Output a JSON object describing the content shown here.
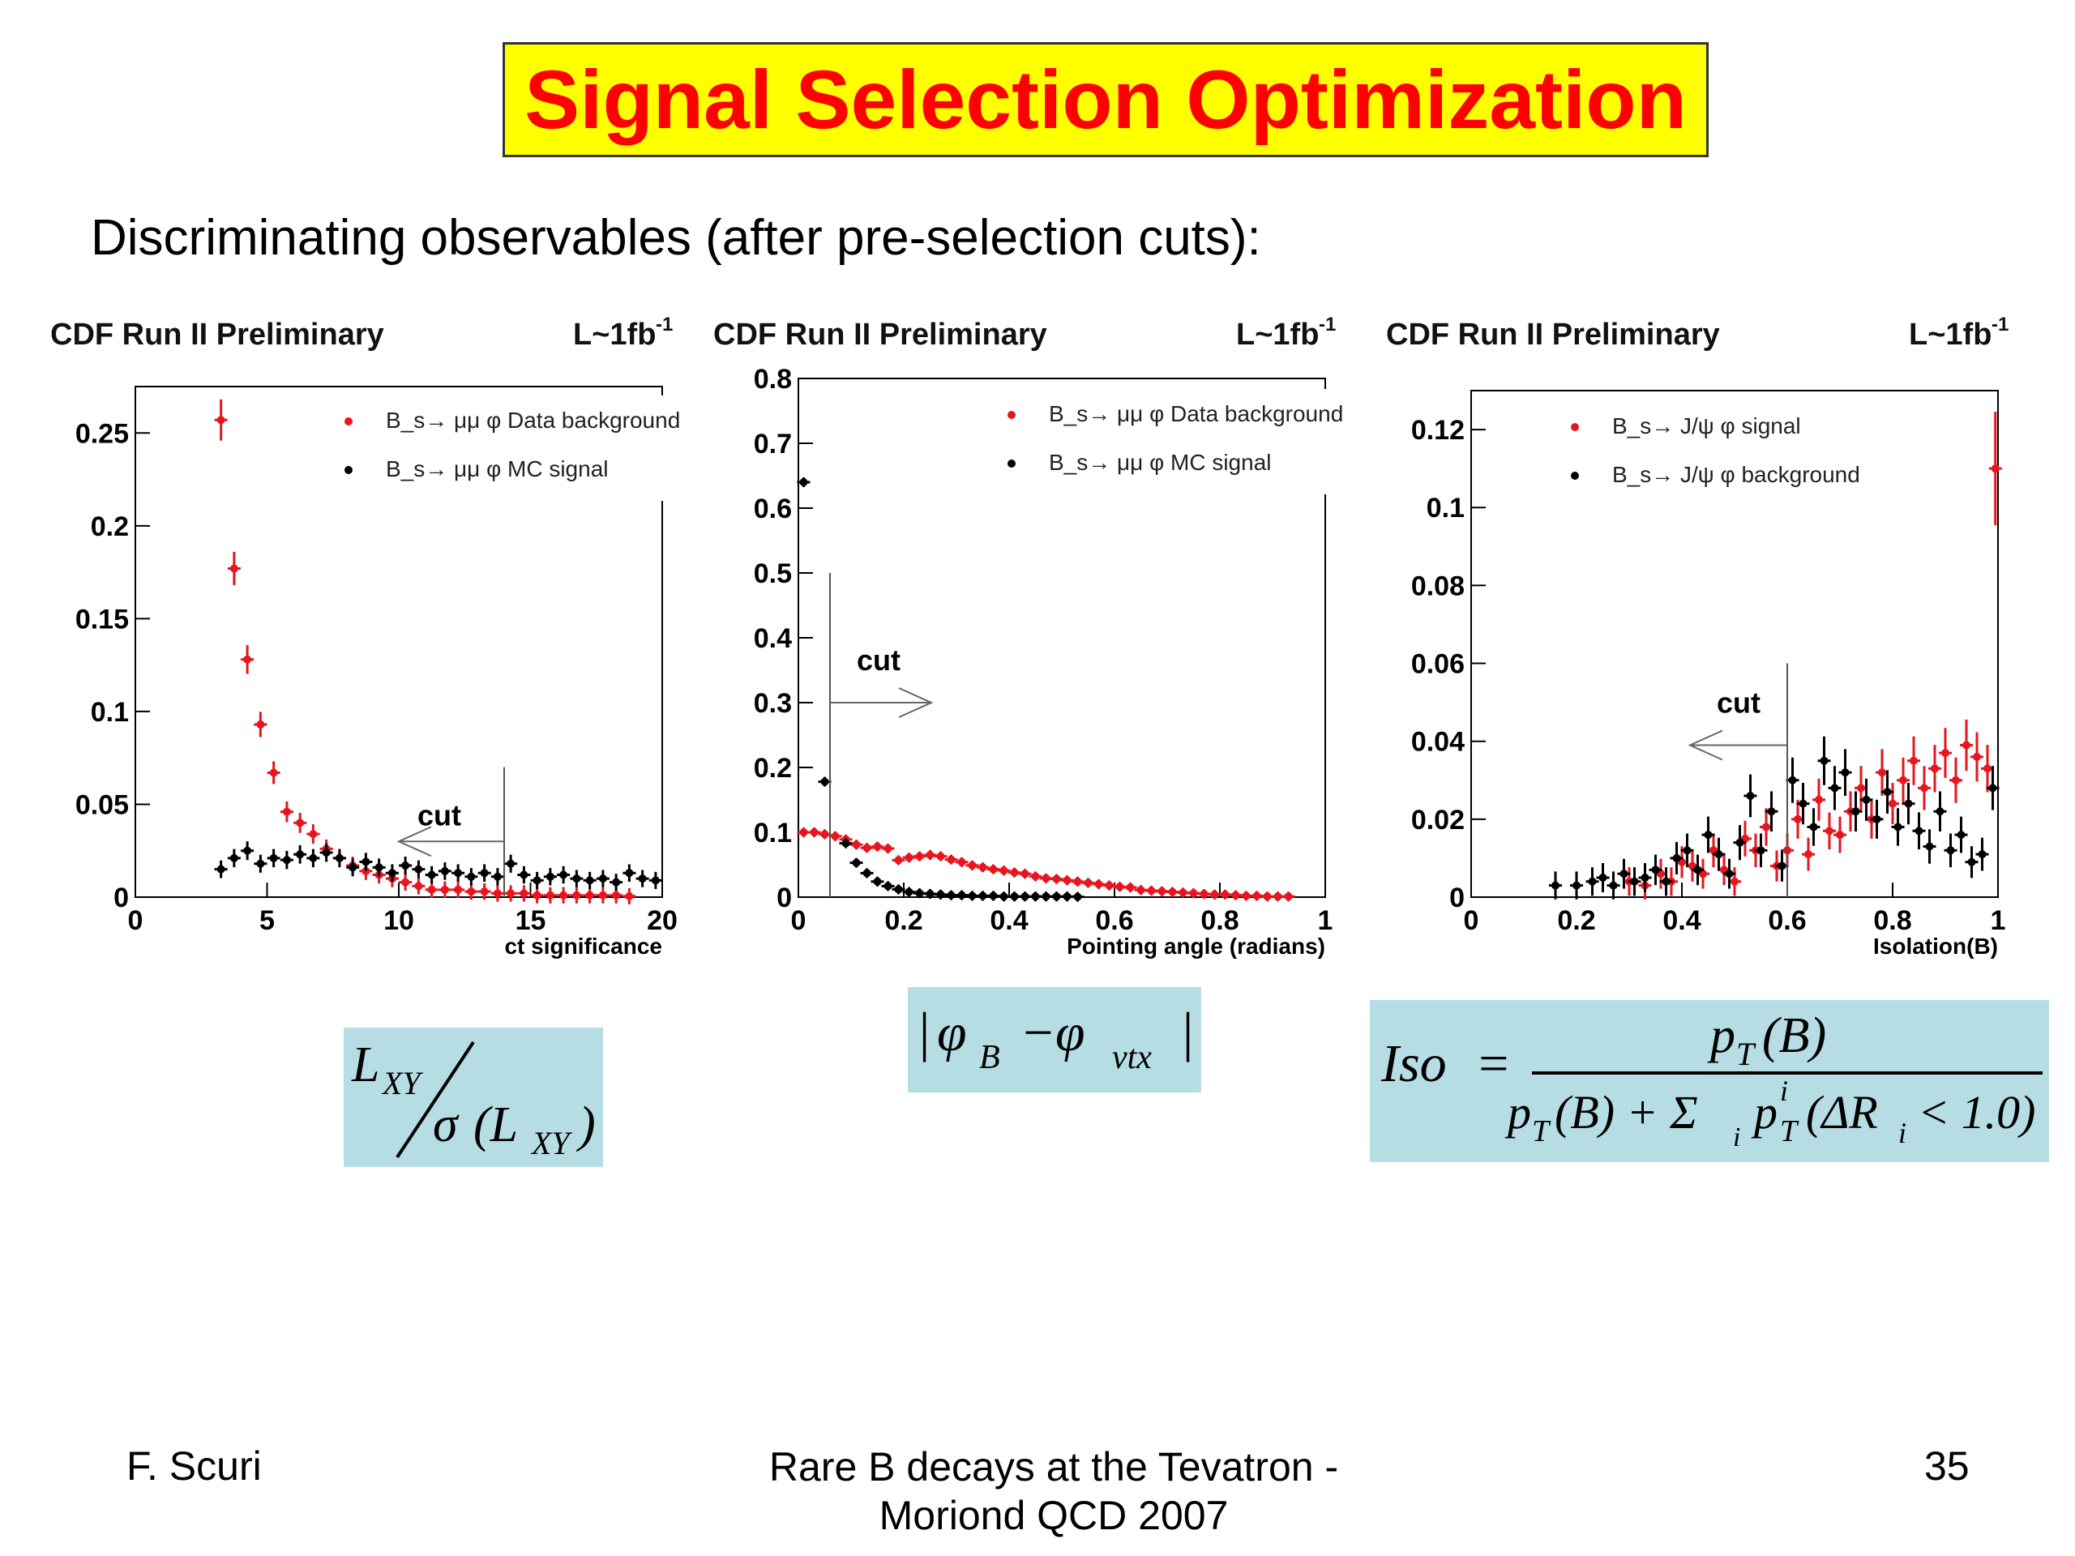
{
  "slide": {
    "title": "Signal Selection Optimization",
    "subtitle": "Discriminating observables (after pre-selection cuts):",
    "footer_left": "F. Scuri",
    "footer_center_line1": "Rare B decays at the Tevatron -",
    "footer_center_line2": "Moriond QCD 2007",
    "footer_right": "35",
    "colors": {
      "title_text": "#ff0000",
      "title_box": "#ffff00",
      "formula_box": "#b6dde3"
    }
  },
  "formulas": {
    "lxy_num": "L",
    "lxy_num_sub": "XY",
    "lxy_den_sym": "σ",
    "lxy_den_arg": "(L",
    "lxy_den_sub": "XY",
    "lxy_den_close": ")",
    "angle_open": "|",
    "angle_phi": "φ",
    "angle_sub_b": "B",
    "angle_minus": "−",
    "angle_phi2": "φ",
    "angle_sub_vtx": "vtx",
    "angle_close": "|",
    "iso_label": "Iso",
    "iso_eq": "=",
    "iso_num": "p",
    "iso_num_sub": "T",
    "iso_num_arg": "(B)",
    "iso_den": "p",
    "iso_den_sub": "T",
    "iso_den_arg": "(B) + Σ",
    "iso_den_i": "i",
    "iso_den_pt": "p",
    "iso_den_pt_sup": "i",
    "iso_den_pt_sub": "T",
    "iso_den_cond": "(ΔR",
    "iso_den_cond_sub": "i",
    "iso_den_cond_end": "< 1.0)"
  },
  "chart_data": [
    {
      "type": "scatter",
      "header_left": "CDF Run II Preliminary",
      "header_right": "L~1fb",
      "header_right_sup": "-1",
      "xlabel": "ct significance",
      "ylabel": "",
      "xlim": [
        0,
        20
      ],
      "ylim": [
        0,
        0.275
      ],
      "xticks": [
        "0",
        "5",
        "10",
        "15",
        "20"
      ],
      "yticks": [
        "0",
        "0.05",
        "0.1",
        "0.15",
        "0.2",
        "0.25"
      ],
      "legend": [
        "B_s→ μμ φ Data background",
        "B_s→ μμ φ MC signal"
      ],
      "annotation": "cut",
      "cut_x": 14,
      "cut_direction": "left",
      "series": [
        {
          "name": "B_s→ μμ φ Data background",
          "color": "#e8141e",
          "x": [
            3.25,
            3.75,
            4.25,
            4.75,
            5.25,
            5.75,
            6.25,
            6.75,
            7.25,
            7.75,
            8.25,
            8.75,
            9.25,
            9.75,
            10.25,
            10.75,
            11.25,
            11.75,
            12.25,
            12.75,
            13.25,
            13.75,
            14.25,
            14.75,
            15.25,
            15.75,
            16.25,
            16.75,
            17.25,
            17.75,
            18.25,
            18.75
          ],
          "y": [
            0.257,
            0.177,
            0.128,
            0.093,
            0.067,
            0.046,
            0.04,
            0.034,
            0.026,
            0.021,
            0.017,
            0.014,
            0.012,
            0.01,
            0.008,
            0.006,
            0.004,
            0.004,
            0.004,
            0.003,
            0.003,
            0.002,
            0.002,
            0.002,
            0.001,
            0.001,
            0.001,
            0.001,
            0.001,
            0.001,
            0.001,
            0.0005
          ]
        },
        {
          "name": "B_s→ μμ φ MC signal",
          "color": "#000000",
          "x": [
            3.25,
            3.75,
            4.25,
            4.75,
            5.25,
            5.75,
            6.25,
            6.75,
            7.25,
            7.75,
            8.25,
            8.75,
            9.25,
            9.75,
            10.25,
            10.75,
            11.25,
            11.75,
            12.25,
            12.75,
            13.25,
            13.75,
            14.25,
            14.75,
            15.25,
            15.75,
            16.25,
            16.75,
            17.25,
            17.75,
            18.25,
            18.75,
            19.25,
            19.75
          ],
          "y": [
            0.015,
            0.021,
            0.025,
            0.018,
            0.021,
            0.02,
            0.023,
            0.021,
            0.024,
            0.021,
            0.016,
            0.019,
            0.016,
            0.013,
            0.017,
            0.015,
            0.012,
            0.014,
            0.013,
            0.011,
            0.013,
            0.011,
            0.018,
            0.012,
            0.009,
            0.011,
            0.012,
            0.01,
            0.009,
            0.01,
            0.008,
            0.013,
            0.01,
            0.009
          ]
        }
      ]
    },
    {
      "type": "scatter",
      "header_left": "CDF Run II Preliminary",
      "header_right": "L~1fb",
      "header_right_sup": "-1",
      "xlabel": "Pointing angle (radians)",
      "ylabel": "",
      "xlim": [
        0,
        1
      ],
      "ylim": [
        0,
        0.8
      ],
      "xticks": [
        "0",
        "0.2",
        "0.4",
        "0.6",
        "0.8",
        "1"
      ],
      "yticks": [
        "0",
        "0.1",
        "0.2",
        "0.3",
        "0.4",
        "0.5",
        "0.6",
        "0.7",
        "0.8"
      ],
      "legend": [
        "B_s→ μμ φ Data background",
        "B_s→ μμ φ MC signal"
      ],
      "annotation": "cut",
      "cut_x": 0.06,
      "cut_direction": "right",
      "series": [
        {
          "name": "B_s→ μμ φ Data background",
          "color": "#e8141e",
          "x": [
            0.01,
            0.03,
            0.05,
            0.07,
            0.09,
            0.11,
            0.13,
            0.15,
            0.17,
            0.19,
            0.21,
            0.23,
            0.25,
            0.27,
            0.29,
            0.31,
            0.33,
            0.35,
            0.37,
            0.39,
            0.41,
            0.43,
            0.45,
            0.47,
            0.49,
            0.51,
            0.53,
            0.55,
            0.57,
            0.59,
            0.61,
            0.63,
            0.65,
            0.67,
            0.69,
            0.71,
            0.73,
            0.75,
            0.77,
            0.79,
            0.81,
            0.83,
            0.85,
            0.87,
            0.89,
            0.91,
            0.93
          ],
          "y": [
            0.1,
            0.1,
            0.097,
            0.094,
            0.089,
            0.081,
            0.076,
            0.078,
            0.075,
            0.057,
            0.061,
            0.063,
            0.065,
            0.063,
            0.058,
            0.054,
            0.049,
            0.046,
            0.043,
            0.041,
            0.038,
            0.036,
            0.032,
            0.029,
            0.028,
            0.026,
            0.024,
            0.022,
            0.02,
            0.018,
            0.016,
            0.015,
            0.011,
            0.01,
            0.009,
            0.008,
            0.007,
            0.006,
            0.005,
            0.004,
            0.004,
            0.003,
            0.002,
            0.002,
            0.001,
            0.001,
            0.001
          ]
        },
        {
          "name": "B_s→ μμ φ MC signal",
          "color": "#000000",
          "x": [
            0.01,
            0.05,
            0.09,
            0.11,
            0.13,
            0.15,
            0.17,
            0.19,
            0.21,
            0.23,
            0.25,
            0.27,
            0.29,
            0.31,
            0.33,
            0.35,
            0.37,
            0.39,
            0.41,
            0.43,
            0.45,
            0.47,
            0.49,
            0.51,
            0.53
          ],
          "y": [
            0.64,
            0.178,
            0.083,
            0.053,
            0.037,
            0.024,
            0.017,
            0.012,
            0.008,
            0.006,
            0.005,
            0.004,
            0.003,
            0.003,
            0.002,
            0.002,
            0.002,
            0.001,
            0.001,
            0.001,
            0.001,
            0.001,
            0.001,
            0.001,
            0.0005
          ]
        }
      ]
    },
    {
      "type": "scatter",
      "header_left": "CDF Run II Preliminary",
      "header_right": "L~1fb",
      "header_right_sup": "-1",
      "xlabel": "Isolation(B)",
      "ylabel": "",
      "xlim": [
        0,
        1
      ],
      "ylim": [
        0,
        0.13
      ],
      "xticks": [
        "0",
        "0.2",
        "0.4",
        "0.6",
        "0.8",
        "1"
      ],
      "yticks": [
        "0",
        "0.02",
        "0.04",
        "0.06",
        "0.08",
        "0.1",
        "0.12"
      ],
      "legend": [
        "B_s→ J/ψ φ signal",
        "B_s→ J/ψ φ background"
      ],
      "annotation": "cut",
      "cut_x": 0.6,
      "cut_direction": "left",
      "series": [
        {
          "name": "B_s→ J/ψ φ signal",
          "color": "#e8141e",
          "x": [
            0.3,
            0.33,
            0.36,
            0.38,
            0.4,
            0.42,
            0.44,
            0.46,
            0.48,
            0.5,
            0.52,
            0.54,
            0.56,
            0.58,
            0.6,
            0.62,
            0.64,
            0.66,
            0.68,
            0.7,
            0.72,
            0.74,
            0.76,
            0.78,
            0.8,
            0.82,
            0.84,
            0.86,
            0.88,
            0.9,
            0.92,
            0.94,
            0.96,
            0.98,
            0.995
          ],
          "y": [
            0.004,
            0.003,
            0.006,
            0.004,
            0.009,
            0.008,
            0.006,
            0.012,
            0.007,
            0.004,
            0.015,
            0.012,
            0.018,
            0.008,
            0.012,
            0.02,
            0.011,
            0.025,
            0.017,
            0.016,
            0.022,
            0.028,
            0.02,
            0.032,
            0.024,
            0.03,
            0.035,
            0.028,
            0.033,
            0.037,
            0.03,
            0.039,
            0.036,
            0.033,
            0.11
          ]
        },
        {
          "name": "B_s→ J/ψ φ background",
          "color": "#000000",
          "x": [
            0.16,
            0.2,
            0.23,
            0.25,
            0.27,
            0.29,
            0.31,
            0.33,
            0.35,
            0.37,
            0.39,
            0.41,
            0.43,
            0.45,
            0.47,
            0.49,
            0.51,
            0.53,
            0.55,
            0.57,
            0.59,
            0.61,
            0.63,
            0.65,
            0.67,
            0.69,
            0.71,
            0.73,
            0.75,
            0.77,
            0.79,
            0.81,
            0.83,
            0.85,
            0.87,
            0.89,
            0.91,
            0.93,
            0.95,
            0.97,
            0.99
          ],
          "y": [
            0.003,
            0.003,
            0.004,
            0.005,
            0.003,
            0.006,
            0.004,
            0.005,
            0.007,
            0.004,
            0.01,
            0.012,
            0.007,
            0.016,
            0.011,
            0.006,
            0.014,
            0.026,
            0.012,
            0.022,
            0.008,
            0.03,
            0.024,
            0.018,
            0.035,
            0.028,
            0.032,
            0.022,
            0.025,
            0.02,
            0.027,
            0.018,
            0.024,
            0.017,
            0.013,
            0.022,
            0.012,
            0.016,
            0.009,
            0.011,
            0.028
          ]
        }
      ]
    }
  ]
}
